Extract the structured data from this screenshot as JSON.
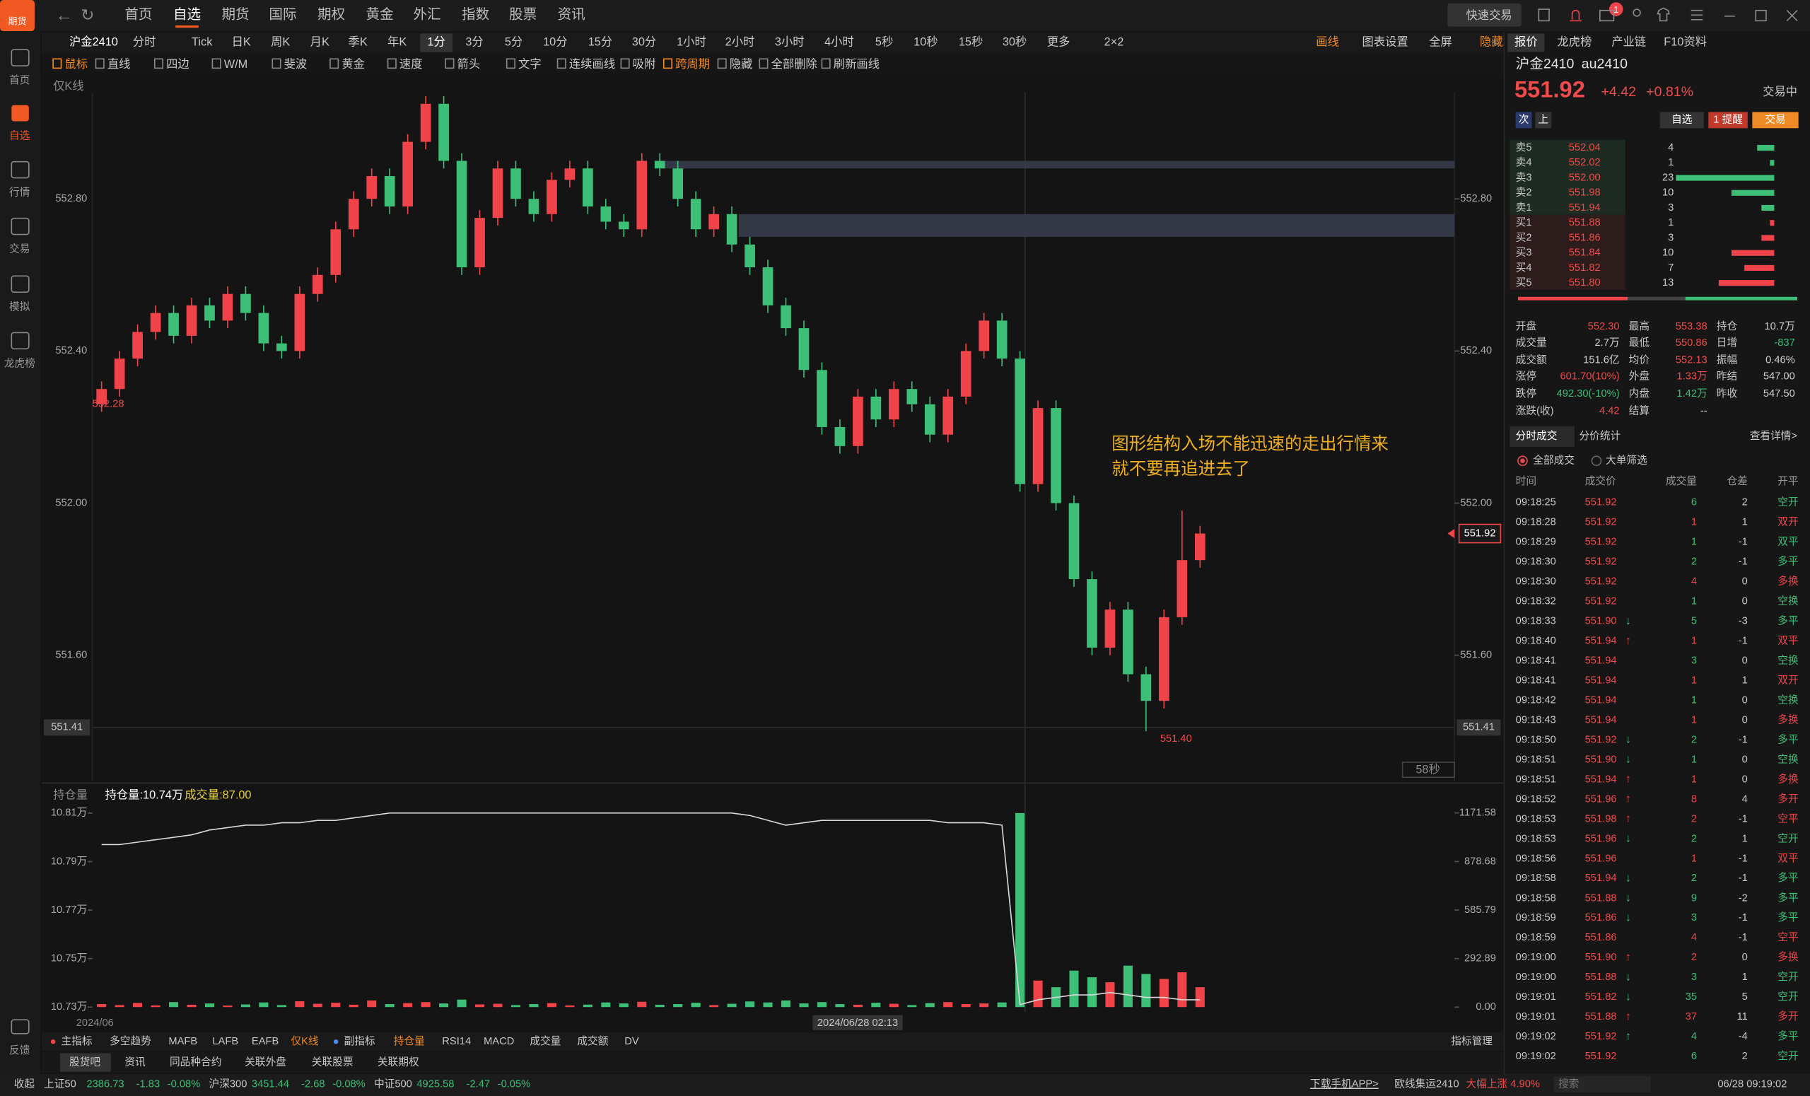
{
  "app": {
    "logo": "期货",
    "nav": [
      "首页",
      "自选",
      "期货",
      "国际",
      "期权",
      "黄金",
      "外汇",
      "指数",
      "股票",
      "资讯"
    ],
    "active_nav": 1,
    "quick_trade": "快速交易",
    "notify_count": 1
  },
  "sidebar": [
    "首页",
    "自选",
    "行情",
    "交易",
    "模拟",
    "龙虎榜"
  ],
  "active_side": 1,
  "feedback": "反馈",
  "toolbar": {
    "symbol": "沪金2410",
    "periods": [
      "分时",
      "Tick",
      "日K",
      "周K",
      "月K",
      "季K",
      "年K",
      "1分",
      "3分",
      "5分",
      "10分",
      "15分",
      "30分",
      "1小时",
      "2小时",
      "3小时",
      "4小时",
      "5秒",
      "10秒",
      "15秒",
      "30秒",
      "更多",
      "2×2"
    ],
    "active_period": 7,
    "right": [
      "画线",
      "图表设置",
      "全屏",
      "隐藏"
    ]
  },
  "tools": [
    "鼠标",
    "直线",
    "四边",
    "W/M",
    "斐波",
    "黄金",
    "速度",
    "箭头",
    "文字",
    "连续画线",
    "吸附",
    "跨周期",
    "隐藏",
    "全部删除",
    "刷新画线"
  ],
  "chart": {
    "mode": "仅K线",
    "ylim": [
      551.27,
      553.08
    ],
    "yticks": [
      {
        "value": 552.8,
        "label": "552.80"
      },
      {
        "value": 552.4,
        "label": "552.40"
      },
      {
        "value": 552.0,
        "label": "552.00"
      },
      {
        "value": 551.6,
        "label": "551.60"
      }
    ],
    "cursor_price": {
      "value": 551.41,
      "label": "551.41"
    },
    "last_price": {
      "value": 551.92,
      "label": "551.92"
    },
    "countdown": "58秒",
    "start_label": "552.28",
    "low_label": "551.40",
    "up_color": "#f0444a",
    "down_color": "#3dbf78",
    "zones": [
      [
        552.88,
        552.9
      ],
      [
        552.7,
        552.76
      ]
    ],
    "annotation": [
      "图形结构入场不能迅速的走出行情来",
      "就不要再追进去了"
    ],
    "candles": [
      [
        552.26,
        552.32,
        552.24,
        552.3
      ],
      [
        552.3,
        552.4,
        552.28,
        552.38
      ],
      [
        552.38,
        552.47,
        552.36,
        552.45
      ],
      [
        552.45,
        552.52,
        552.43,
        552.5
      ],
      [
        552.5,
        552.52,
        552.42,
        552.44
      ],
      [
        552.44,
        552.54,
        552.42,
        552.52
      ],
      [
        552.52,
        552.54,
        552.46,
        552.48
      ],
      [
        552.48,
        552.57,
        552.46,
        552.55
      ],
      [
        552.55,
        552.57,
        552.48,
        552.5
      ],
      [
        552.5,
        552.52,
        552.4,
        552.42
      ],
      [
        552.42,
        552.44,
        552.38,
        552.4
      ],
      [
        552.4,
        552.57,
        552.38,
        552.55
      ],
      [
        552.55,
        552.62,
        552.53,
        552.6
      ],
      [
        552.6,
        552.74,
        552.58,
        552.72
      ],
      [
        552.72,
        552.82,
        552.7,
        552.8
      ],
      [
        552.8,
        552.88,
        552.78,
        552.86
      ],
      [
        552.86,
        552.88,
        552.76,
        552.78
      ],
      [
        552.78,
        552.97,
        552.76,
        552.95
      ],
      [
        552.95,
        553.07,
        552.93,
        553.05
      ],
      [
        553.05,
        553.07,
        552.88,
        552.9
      ],
      [
        552.9,
        552.92,
        552.6,
        552.62
      ],
      [
        552.62,
        552.77,
        552.6,
        552.75
      ],
      [
        552.75,
        552.9,
        552.73,
        552.88
      ],
      [
        552.88,
        552.9,
        552.78,
        552.8
      ],
      [
        552.8,
        552.82,
        552.74,
        552.76
      ],
      [
        552.76,
        552.87,
        552.74,
        552.85
      ],
      [
        552.85,
        552.9,
        552.83,
        552.88
      ],
      [
        552.88,
        552.9,
        552.76,
        552.78
      ],
      [
        552.78,
        552.8,
        552.72,
        552.74
      ],
      [
        552.74,
        552.76,
        552.7,
        552.72
      ],
      [
        552.72,
        552.92,
        552.7,
        552.9
      ],
      [
        552.9,
        552.92,
        552.86,
        552.88
      ],
      [
        552.88,
        552.9,
        552.78,
        552.8
      ],
      [
        552.8,
        552.82,
        552.7,
        552.72
      ],
      [
        552.72,
        552.78,
        552.7,
        552.76
      ],
      [
        552.76,
        552.78,
        552.66,
        552.68
      ],
      [
        552.68,
        552.7,
        552.6,
        552.62
      ],
      [
        552.62,
        552.64,
        552.5,
        552.52
      ],
      [
        552.52,
        552.54,
        552.44,
        552.46
      ],
      [
        552.46,
        552.48,
        552.33,
        552.35
      ],
      [
        552.35,
        552.37,
        552.18,
        552.2
      ],
      [
        552.2,
        552.22,
        552.13,
        552.15
      ],
      [
        552.15,
        552.3,
        552.13,
        552.28
      ],
      [
        552.28,
        552.3,
        552.2,
        552.22
      ],
      [
        552.22,
        552.32,
        552.2,
        552.3
      ],
      [
        552.3,
        552.32,
        552.24,
        552.26
      ],
      [
        552.26,
        552.28,
        552.16,
        552.18
      ],
      [
        552.18,
        552.3,
        552.16,
        552.28
      ],
      [
        552.28,
        552.42,
        552.26,
        552.4
      ],
      [
        552.4,
        552.5,
        552.38,
        552.48
      ],
      [
        552.48,
        552.5,
        552.36,
        552.38
      ],
      [
        552.38,
        552.4,
        552.03,
        552.05
      ],
      [
        552.05,
        552.27,
        552.03,
        552.25
      ],
      [
        552.25,
        552.27,
        551.98,
        552.0
      ],
      [
        552.0,
        552.02,
        551.78,
        551.8
      ],
      [
        551.8,
        551.82,
        551.6,
        551.62
      ],
      [
        551.62,
        551.74,
        551.6,
        551.72
      ],
      [
        551.72,
        551.74,
        551.53,
        551.55
      ],
      [
        551.55,
        551.57,
        551.4,
        551.48
      ],
      [
        551.48,
        551.72,
        551.46,
        551.7
      ],
      [
        551.7,
        551.98,
        551.68,
        551.85
      ],
      [
        551.85,
        551.94,
        551.83,
        551.92
      ]
    ]
  },
  "sub": {
    "selector": "持仓量",
    "oi_label": "持仓量:10.74万",
    "vol_label": "成交量:87.00",
    "oi_color": "#d8d8d8",
    "ylim": [
      10.73,
      10.81
    ],
    "yticks": [
      {
        "value": 10.81,
        "label": "10.81万"
      },
      {
        "value": 10.79,
        "label": "10.79万"
      },
      {
        "value": 10.77,
        "label": "10.77万"
      },
      {
        "value": 10.75,
        "label": "10.75万"
      },
      {
        "value": 10.73,
        "label": "10.73万"
      }
    ],
    "y2lim": [
      0,
      1171.58
    ],
    "y2ticks": [
      1171.58,
      878.68,
      585.79,
      292.89,
      {
        "value": 0,
        "label": "0.00"
      }
    ],
    "oi": [
      10.797,
      10.797,
      10.798,
      10.799,
      10.8,
      10.801,
      10.803,
      10.804,
      10.805,
      10.805,
      10.806,
      10.806,
      10.807,
      10.807,
      10.808,
      10.809,
      10.81,
      10.81,
      10.81,
      10.81,
      10.81,
      10.81,
      10.81,
      10.81,
      10.81,
      10.81,
      10.81,
      10.81,
      10.81,
      10.81,
      10.81,
      10.81,
      10.81,
      10.81,
      10.81,
      10.81,
      10.809,
      10.807,
      10.805,
      10.806,
      10.807,
      10.807,
      10.807,
      10.807,
      10.807,
      10.807,
      10.807,
      10.806,
      10.806,
      10.806,
      10.805,
      10.731,
      10.733,
      10.734,
      10.735,
      10.735,
      10.736,
      10.735,
      10.734,
      10.734,
      10.733,
      10.733
    ],
    "volume": [
      18,
      12,
      25,
      10,
      30,
      14,
      22,
      9,
      16,
      28,
      12,
      35,
      20,
      26,
      14,
      40,
      18,
      24,
      30,
      22,
      45,
      16,
      20,
      12,
      18,
      24,
      10,
      15,
      28,
      22,
      32,
      14,
      18,
      26,
      12,
      20,
      34,
      28,
      40,
      22,
      30,
      18,
      14,
      26,
      20,
      12,
      24,
      30,
      18,
      22,
      28,
      1171.58,
      160,
      120,
      220,
      180,
      150,
      250,
      200,
      170,
      210,
      120
    ],
    "x_label": "2024/06",
    "cursor_time": "2024/06/28 02:13"
  },
  "indicators": {
    "main": "主指标",
    "items1": [
      "多空趋势",
      "MAFB",
      "LAFB",
      "EAFB",
      "仅K线"
    ],
    "sub": "副指标",
    "items2": [
      "持仓量",
      "RSI14",
      "MACD",
      "成交量",
      "成交额",
      "DV"
    ],
    "manage": "指标管理"
  },
  "bottom_tabs": [
    "股货吧",
    "资讯",
    "同品种合约",
    "关联外盘",
    "关联股票",
    "关联期权"
  ],
  "status": {
    "collapse": "收起",
    "indices": [
      {
        "name": "上证50",
        "price": "2386.73",
        "change": "-1.83",
        "pct": "-0.08%"
      },
      {
        "name": "沪深300",
        "price": "3451.44",
        "change": "-2.68",
        "pct": "-0.08%"
      },
      {
        "name": "中证500",
        "price": "4925.58",
        "change": "-2.47",
        "pct": "-0.05%"
      }
    ],
    "download": "下载手机APP>",
    "news_name": "欧线集运2410",
    "news_text": "大幅上涨 4.90%",
    "search": "搜索",
    "time": "06/28 09:19:02"
  },
  "panel_tabs": [
    "报价",
    "龙虎榜",
    "产业链",
    "F10资料"
  ],
  "quote": {
    "name": "沪金2410",
    "code": "au2410",
    "price": "551.92",
    "change": "+4.42",
    "pct": "+0.81%",
    "status": "交易中",
    "buttons": [
      "次",
      "上",
      "自选",
      "1 提醒",
      "交易"
    ]
  },
  "book": {
    "asks": [
      {
        "label": "卖5",
        "price": "552.04",
        "qty": 4
      },
      {
        "label": "卖4",
        "price": "552.02",
        "qty": 1
      },
      {
        "label": "卖3",
        "price": "552.00",
        "qty": 23
      },
      {
        "label": "卖2",
        "price": "551.98",
        "qty": 10
      },
      {
        "label": "卖1",
        "price": "551.94",
        "qty": 3
      }
    ],
    "bids": [
      {
        "label": "买1",
        "price": "551.88",
        "qty": 1
      },
      {
        "label": "买2",
        "price": "551.86",
        "qty": 3
      },
      {
        "label": "买3",
        "price": "551.84",
        "qty": 10
      },
      {
        "label": "买4",
        "price": "551.82",
        "qty": 7
      },
      {
        "label": "买5",
        "price": "551.80",
        "qty": 13
      }
    ],
    "ask_color": "#3dbf78",
    "bid_color": "#f0444a"
  },
  "stats": [
    [
      [
        "开盘",
        "552.30",
        "#f04a4a"
      ],
      [
        "最高",
        "553.38",
        "#f04a4a"
      ],
      [
        "持仓",
        "10.7万",
        "#d0d0d0"
      ]
    ],
    [
      [
        "成交量",
        "2.7万",
        "#d0d0d0"
      ],
      [
        "最低",
        "550.86",
        "#f04a4a"
      ],
      [
        "日增",
        "-837",
        "#3dbf78"
      ]
    ],
    [
      [
        "成交额",
        "151.6亿",
        "#d0d0d0"
      ],
      [
        "均价",
        "552.13",
        "#f04a4a"
      ],
      [
        "振幅",
        "0.46%",
        "#d0d0d0"
      ]
    ],
    [
      [
        "涨停",
        "601.70(10%)",
        "#f04a4a"
      ],
      [
        "外盘",
        "1.33万",
        "#f04a4a"
      ],
      [
        "昨结",
        "547.00",
        "#d0d0d0"
      ]
    ],
    [
      [
        "跌停",
        "492.30(-10%)",
        "#3dbf78"
      ],
      [
        "内盘",
        "1.42万",
        "#3dbf78"
      ],
      [
        "昨收",
        "547.50",
        "#d0d0d0"
      ]
    ],
    [
      [
        "涨跌(收)",
        "4.42",
        "#f04a4a"
      ],
      [
        "结算",
        "--",
        "#d0d0d0"
      ]
    ]
  ],
  "trade_tabs": [
    "分时成交",
    "分价统计"
  ],
  "trade_more": "查看详情>",
  "filters": [
    "全部成交",
    "大单筛选"
  ],
  "trade_header": [
    "时间",
    "成交价",
    "成交量",
    "仓差",
    "开平"
  ],
  "trades": [
    {
      "time": "09:18:25",
      "price": "551.92",
      "vol": 6,
      "oi": 2,
      "type": "空开",
      "color": "#3dbf78"
    },
    {
      "time": "09:18:28",
      "price": "551.92",
      "vol": 1,
      "oi": 1,
      "type": "双开",
      "color": "#f0444a"
    },
    {
      "time": "09:18:29",
      "price": "551.92",
      "vol": 1,
      "oi": -1,
      "type": "双平",
      "color": "#3dbf78"
    },
    {
      "time": "09:18:30",
      "price": "551.92",
      "vol": 2,
      "oi": -1,
      "type": "多平",
      "color": "#3dbf78"
    },
    {
      "time": "09:18:30",
      "price": "551.92",
      "vol": 4,
      "oi": 0,
      "type": "多换",
      "color": "#f0444a"
    },
    {
      "time": "09:18:32",
      "price": "551.92",
      "vol": 1,
      "oi": 0,
      "type": "空换",
      "color": "#3dbf78"
    },
    {
      "time": "09:18:33",
      "price": "551.90",
      "arrow": "↓",
      "vol": 5,
      "oi": -3,
      "type": "多平",
      "color": "#3dbf78"
    },
    {
      "time": "09:18:40",
      "price": "551.94",
      "arrow": "↑",
      "vol": 1,
      "oi": -1,
      "type": "双平",
      "color": "#f0444a"
    },
    {
      "time": "09:18:41",
      "price": "551.94",
      "vol": 3,
      "oi": 0,
      "type": "空换",
      "color": "#3dbf78"
    },
    {
      "time": "09:18:41",
      "price": "551.94",
      "vol": 1,
      "oi": 1,
      "type": "双开",
      "color": "#f0444a"
    },
    {
      "time": "09:18:42",
      "price": "551.94",
      "vol": 1,
      "oi": 0,
      "type": "空换",
      "color": "#3dbf78"
    },
    {
      "time": "09:18:43",
      "price": "551.94",
      "vol": 1,
      "oi": 0,
      "type": "多换",
      "color": "#f0444a"
    },
    {
      "time": "09:18:50",
      "price": "551.92",
      "arrow": "↓",
      "vol": 2,
      "oi": -1,
      "type": "多平",
      "color": "#3dbf78"
    },
    {
      "time": "09:18:51",
      "price": "551.90",
      "arrow": "↓",
      "vol": 1,
      "oi": 0,
      "type": "空换",
      "color": "#3dbf78"
    },
    {
      "time": "09:18:51",
      "price": "551.94",
      "arrow": "↑",
      "vol": 1,
      "oi": 0,
      "type": "多换",
      "color": "#f0444a"
    },
    {
      "time": "09:18:52",
      "price": "551.96",
      "arrow": "↑",
      "vol": 8,
      "oi": 4,
      "type": "多开",
      "color": "#f0444a"
    },
    {
      "time": "09:18:53",
      "price": "551.98",
      "arrow": "↑",
      "vol": 2,
      "oi": -1,
      "type": "空平",
      "color": "#f0444a"
    },
    {
      "time": "09:18:53",
      "price": "551.96",
      "arrow": "↓",
      "vol": 2,
      "oi": 1,
      "type": "空开",
      "color": "#3dbf78"
    },
    {
      "time": "09:18:56",
      "price": "551.96",
      "vol": 1,
      "oi": -1,
      "type": "双平",
      "color": "#f0444a"
    },
    {
      "time": "09:18:58",
      "price": "551.94",
      "arrow": "↓",
      "vol": 2,
      "oi": -1,
      "type": "多平",
      "color": "#3dbf78"
    },
    {
      "time": "09:18:58",
      "price": "551.88",
      "arrow": "↓",
      "vol": 9,
      "oi": -2,
      "type": "多平",
      "color": "#3dbf78"
    },
    {
      "time": "09:18:59",
      "price": "551.86",
      "arrow": "↓",
      "vol": 3,
      "oi": -1,
      "type": "多平",
      "color": "#3dbf78"
    },
    {
      "time": "09:18:59",
      "price": "551.86",
      "vol": 4,
      "oi": -1,
      "type": "空平",
      "color": "#f0444a"
    },
    {
      "time": "09:19:00",
      "price": "551.90",
      "arrow": "↑",
      "vol": 2,
      "oi": 0,
      "type": "多换",
      "color": "#f0444a"
    },
    {
      "time": "09:19:00",
      "price": "551.88",
      "arrow": "↓",
      "vol": 3,
      "oi": 1,
      "type": "空开",
      "color": "#3dbf78"
    },
    {
      "time": "09:19:01",
      "price": "551.82",
      "arrow": "↓",
      "vol": 35,
      "oi": 5,
      "type": "空开",
      "color": "#3dbf78"
    },
    {
      "time": "09:19:01",
      "price": "551.88",
      "arrow": "↑",
      "vol": 37,
      "oi": 11,
      "type": "多开",
      "color": "#f0444a"
    },
    {
      "time": "09:19:02",
      "price": "551.92",
      "arrow": "↑",
      "vol": 4,
      "oi": -4,
      "type": "多平",
      "color": "#3dbf78"
    },
    {
      "time": "09:19:02",
      "price": "551.92",
      "vol": 6,
      "oi": 2,
      "type": "空开",
      "color": "#3dbf78"
    }
  ]
}
